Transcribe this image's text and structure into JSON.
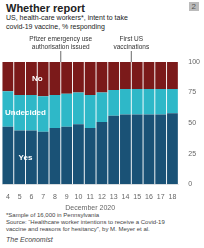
{
  "chart_data": {
    "type": "bar",
    "stacked": true,
    "title": "Whether report",
    "subtitle": "US, health-care workers*, intent to take\ncovid-19 vaccine, % responding",
    "chart_number": "2",
    "xlabel": "December 2020",
    "categories": [
      4,
      5,
      6,
      7,
      8,
      9,
      10,
      11,
      12,
      13,
      14,
      15,
      16,
      17,
      18
    ],
    "series": [
      {
        "name": "Yes",
        "color": "#1a5276",
        "values": [
          47,
          44,
          44,
          43,
          46,
          47,
          49,
          46,
          51,
          56,
          57,
          57,
          57,
          57,
          58
        ]
      },
      {
        "name": "Undecided",
        "color": "#2eb8c8",
        "values": [
          29,
          29,
          29,
          29,
          27,
          27,
          26,
          27,
          24,
          21,
          21,
          21,
          21,
          21,
          20
        ]
      },
      {
        "name": "No",
        "color": "#7b1a1a",
        "values": [
          24,
          27,
          27,
          28,
          27,
          26,
          25,
          27,
          25,
          23,
          22,
          22,
          22,
          22,
          22
        ]
      }
    ],
    "ylim": [
      0,
      100
    ],
    "yticks": [
      0,
      25,
      50,
      75,
      100
    ],
    "grid": false,
    "annotations": [
      {
        "x": 4.5,
        "text": "Pfizer emergency use\nauthorisation issued"
      },
      {
        "x": 10.5,
        "text": "First US\nvaccinations"
      }
    ],
    "footnotes": [
      "*Sample of 16,000 in Pennsylvania",
      "Source: “Healthcare worker intentions to receive a Covid-19",
      "vaccine and reasons for hesitancy”, by M. Meyer et al."
    ],
    "footer": "The Economist"
  }
}
